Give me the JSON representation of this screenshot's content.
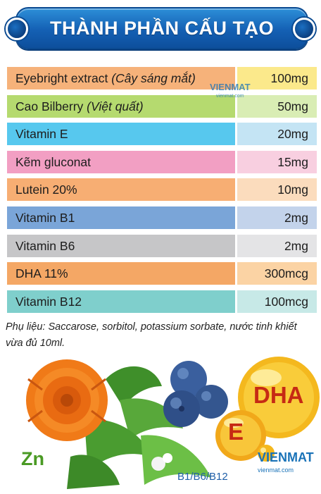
{
  "header": {
    "title": "THÀNH PHẦN CẤU TẠO"
  },
  "ingredients": [
    {
      "name": "Eyebright extract",
      "note": "(Cây sáng mắt)",
      "amount": "100mg",
      "name_color": "#f6b27a",
      "amount_color": "#fbe98b"
    },
    {
      "name": "Cao Bilberry",
      "note": "(Việt quất)",
      "amount": "50mg",
      "name_color": "#b5da6f",
      "amount_color": "#d9edb4"
    },
    {
      "name": "Vitamin E",
      "note": "",
      "amount": "20mg",
      "name_color": "#57c8ee",
      "amount_color": "#c4e4f4"
    },
    {
      "name": "Kẽm gluconat",
      "note": "",
      "amount": "15mg",
      "name_color": "#f29fc3",
      "amount_color": "#f8cfe0"
    },
    {
      "name": "Lutein 20%",
      "note": "",
      "amount": "10mg",
      "name_color": "#f7ae73",
      "amount_color": "#fbdcbd"
    },
    {
      "name": "Vitamin B1",
      "note": "",
      "amount": "2mg",
      "name_color": "#7aa5d8",
      "amount_color": "#c3d3eb"
    },
    {
      "name": "Vitamin B6",
      "note": "",
      "amount": "2mg",
      "name_color": "#c6c6c8",
      "amount_color": "#e4e4e6"
    },
    {
      "name": "DHA 11%",
      "note": "",
      "amount": "300mcg",
      "name_color": "#f4a765",
      "amount_color": "#fbd3a4"
    },
    {
      "name": "Vitamin B12",
      "note": "",
      "amount": "100mcg",
      "name_color": "#7fcfcc",
      "amount_color": "#c7e9e7"
    }
  ],
  "watermark": {
    "brand": "VIENMAT",
    "site": "vienmat.com"
  },
  "footnote": "Phụ liệu: Saccarose, sorbitol, potassium sorbate, nước tinh khiết vừa đủ 10ml.",
  "illustration": {
    "zinc_label": "Zn",
    "vitamin_label": "B1/B6/B12",
    "dha_label": "DHA",
    "vitamin_e_label": "E",
    "brand": "VIENMAT",
    "site": "vienmat.com"
  },
  "colors": {
    "banner_blue": "#1460b4",
    "marigold_orange": "#f07a18",
    "blueberry": "#3a5f9e",
    "capsule_gold": "#f4b81e"
  }
}
